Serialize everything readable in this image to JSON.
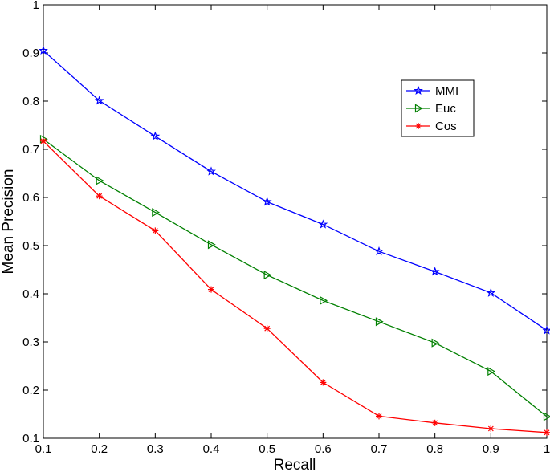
{
  "chart_data": {
    "type": "line",
    "title": "",
    "xlabel": "Recall",
    "ylabel": "Mean Precision",
    "xlim": [
      0.1,
      1
    ],
    "ylim": [
      0.1,
      1
    ],
    "x_ticks": [
      "0.1",
      "0.2",
      "0.3",
      "0.4",
      "0.5",
      "0.6",
      "0.7",
      "0.8",
      "0.9",
      "1"
    ],
    "y_ticks": [
      "0.1",
      "0.2",
      "0.3",
      "0.4",
      "0.5",
      "0.6",
      "0.7",
      "0.8",
      "0.9",
      "1"
    ],
    "grid": false,
    "legend_position": "top-right",
    "x": [
      0.1,
      0.2,
      0.3,
      0.4,
      0.5,
      0.6,
      0.7,
      0.8,
      0.9,
      1.0
    ],
    "series": [
      {
        "name": "MMI",
        "color": "#0000ff",
        "marker": "star",
        "values": [
          0.905,
          0.801,
          0.727,
          0.654,
          0.591,
          0.544,
          0.488,
          0.446,
          0.402,
          0.324
        ]
      },
      {
        "name": "Euc",
        "color": "#008000",
        "marker": "triangle-right",
        "values": [
          0.721,
          0.635,
          0.569,
          0.502,
          0.439,
          0.386,
          0.342,
          0.298,
          0.239,
          0.145
        ]
      },
      {
        "name": "Cos",
        "color": "#ff0000",
        "marker": "asterisk",
        "values": [
          0.717,
          0.603,
          0.531,
          0.409,
          0.328,
          0.216,
          0.146,
          0.132,
          0.12,
          0.112
        ]
      }
    ]
  }
}
